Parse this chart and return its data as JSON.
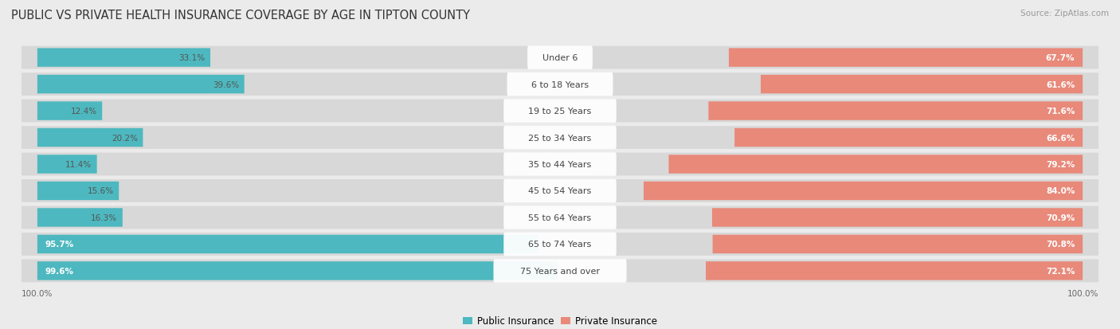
{
  "title": "PUBLIC VS PRIVATE HEALTH INSURANCE COVERAGE BY AGE IN TIPTON COUNTY",
  "source": "Source: ZipAtlas.com",
  "categories": [
    "Under 6",
    "6 to 18 Years",
    "19 to 25 Years",
    "25 to 34 Years",
    "35 to 44 Years",
    "45 to 54 Years",
    "55 to 64 Years",
    "65 to 74 Years",
    "75 Years and over"
  ],
  "public_values": [
    33.1,
    39.6,
    12.4,
    20.2,
    11.4,
    15.6,
    16.3,
    95.7,
    99.6
  ],
  "private_values": [
    67.7,
    61.6,
    71.6,
    66.6,
    79.2,
    84.0,
    70.9,
    70.8,
    72.1
  ],
  "public_color": "#4db8bf",
  "private_color": "#e8897a",
  "background_color": "#ebebeb",
  "row_bg_color": "#d8d8d8",
  "title_fontsize": 10.5,
  "label_fontsize": 8,
  "value_fontsize": 7.5,
  "legend_fontsize": 8.5,
  "source_fontsize": 7.5
}
